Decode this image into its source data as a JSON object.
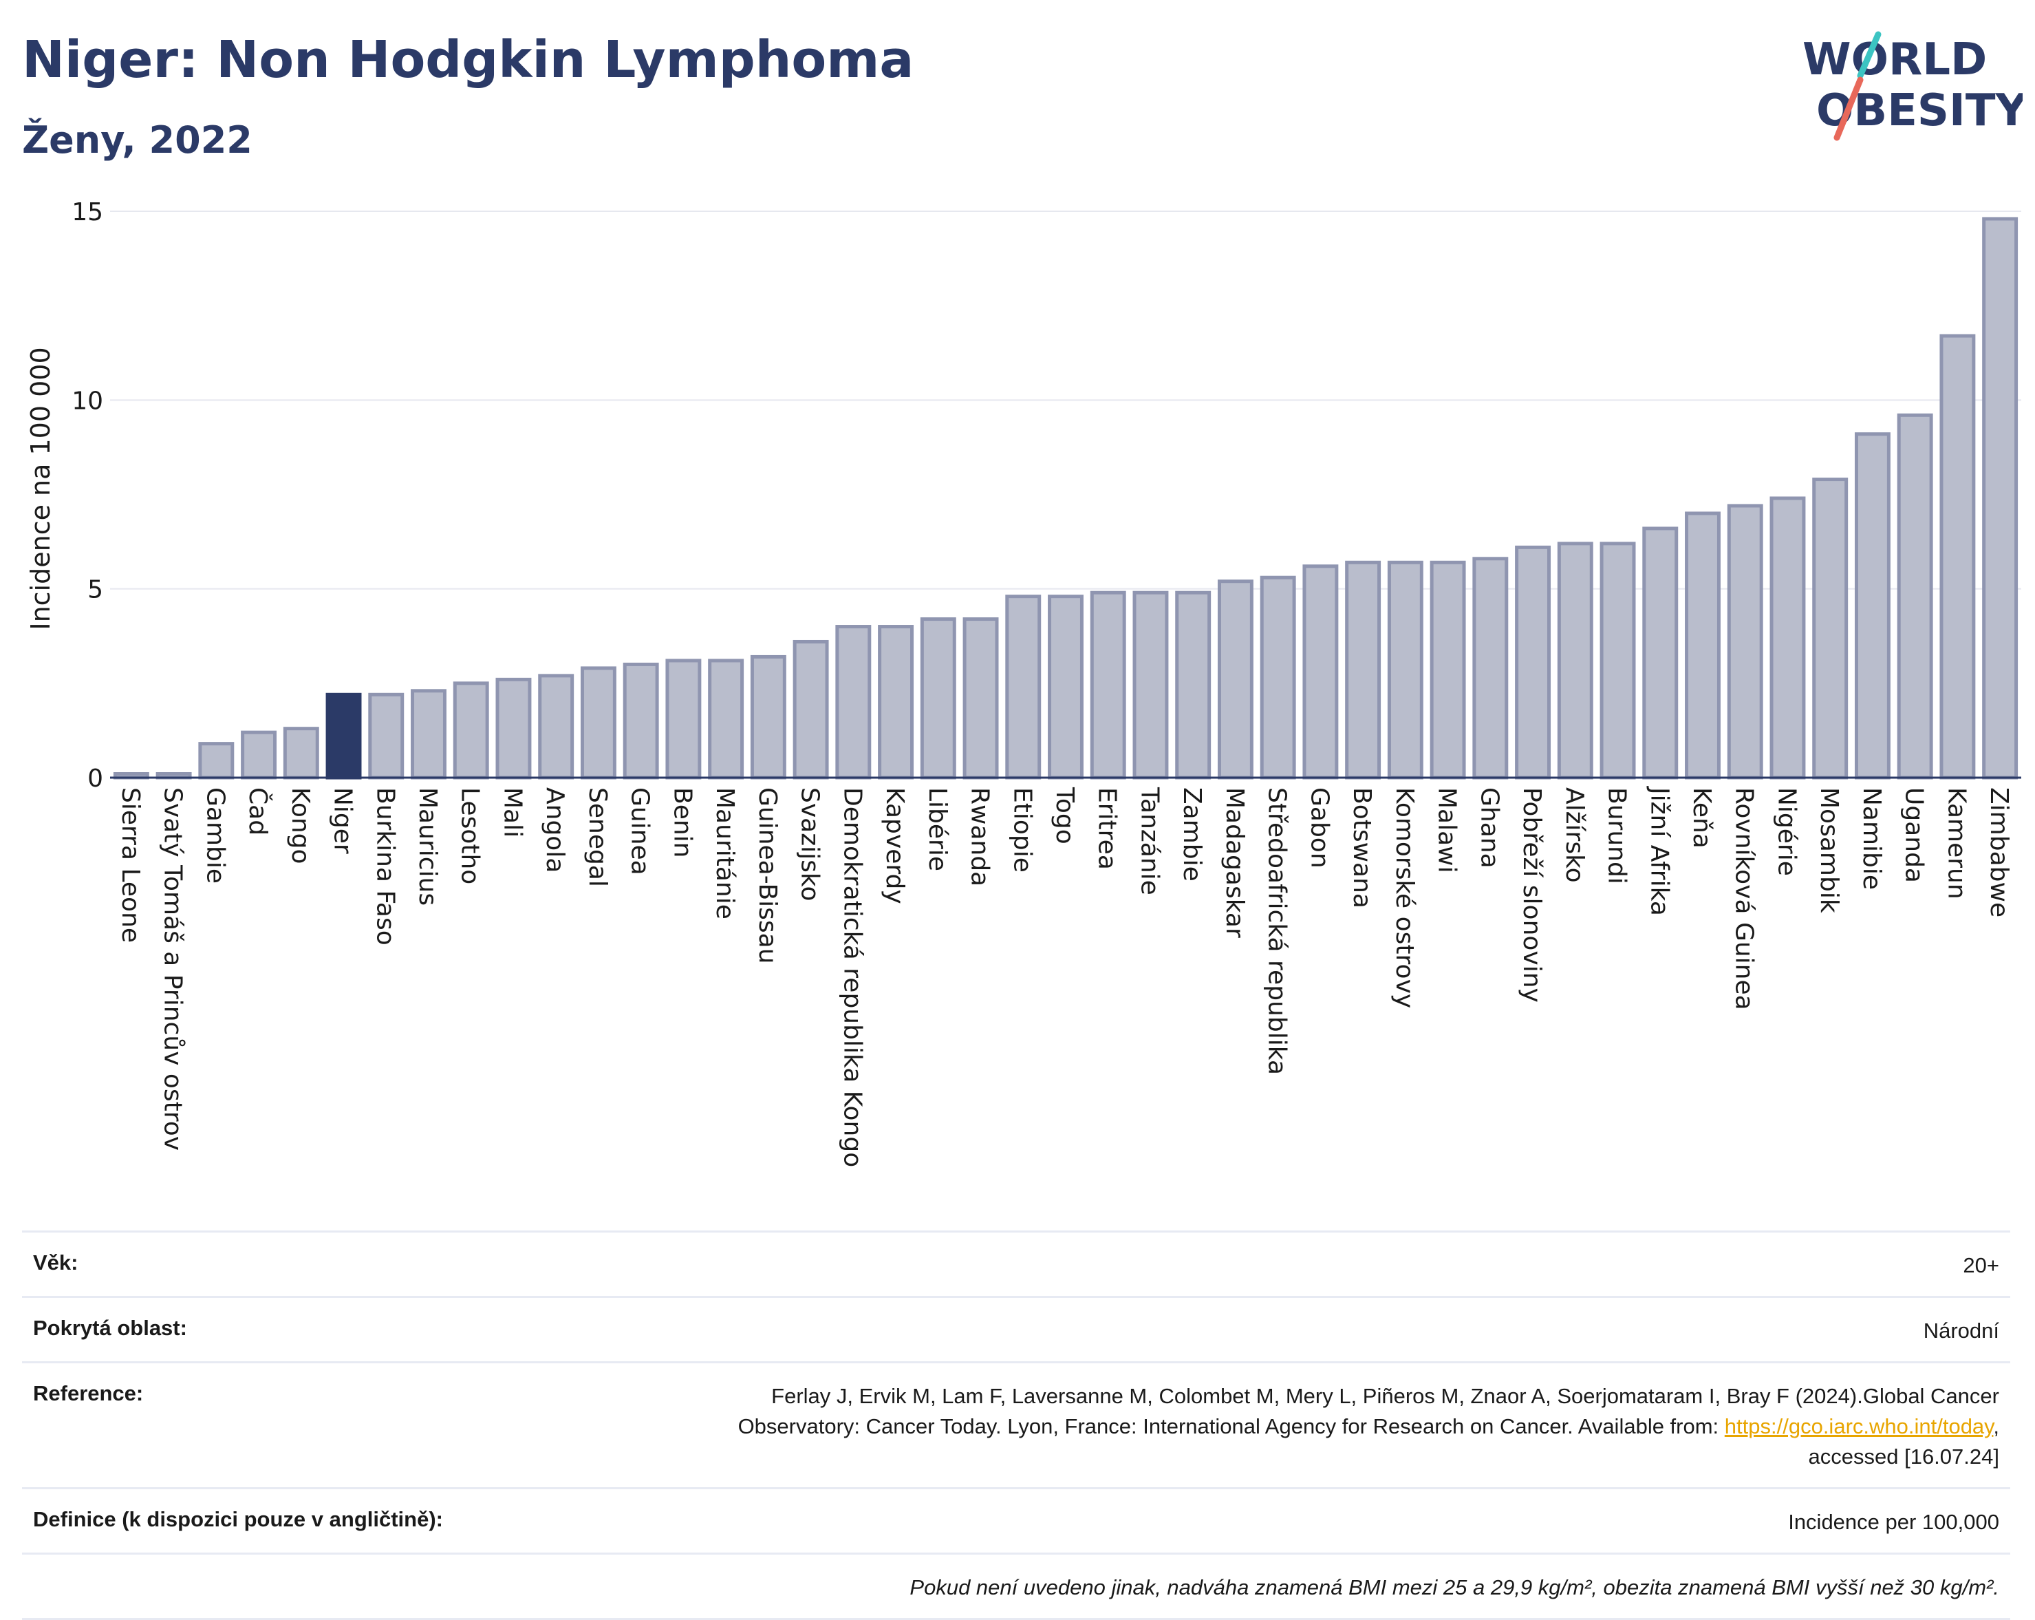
{
  "header": {
    "title": "Niger: Non Hodgkin Lymphoma",
    "subtitle": "Ženy, 2022",
    "logo_line1": "WORLD",
    "logo_line2": "OBESITY"
  },
  "colors": {
    "bar": "#b9bdcc",
    "bar_stroke": "#8f95b0",
    "highlight": "#2b3a67",
    "grid": "#e6e8ef",
    "text": "#2b3a67",
    "logo_teal": "#3cc4c2",
    "logo_red": "#e8685a"
  },
  "chart_data": {
    "type": "bar",
    "ylabel": "Incidence na 100 000",
    "ylim": [
      0,
      15
    ],
    "yticks": [
      0,
      5,
      10,
      15
    ],
    "highlight": "Niger",
    "categories": [
      "Sierra Leone",
      "Svatý Tomáš a Princův ostrov",
      "Gambie",
      "Čad",
      "Kongo",
      "Niger",
      "Burkina Faso",
      "Mauricius",
      "Lesotho",
      "Mali",
      "Angola",
      "Senegal",
      "Guinea",
      "Benin",
      "Mauritánie",
      "Guinea-Bissau",
      "Svazijsko",
      "Demokratická republika Kongo",
      "Kapverdy",
      "Libérie",
      "Rwanda",
      "Etiopie",
      "Togo",
      "Eritrea",
      "Tanzánie",
      "Zambie",
      "Madagaskar",
      "Středoafrická republika",
      "Gabon",
      "Botswana",
      "Komorské ostrovy",
      "Malawi",
      "Ghana",
      "Pobřeží slonoviny",
      "Alžírsko",
      "Burundi",
      "Jižní Afrika",
      "Keňa",
      "Rovníková Guinea",
      "Nigérie",
      "Mosambik",
      "Namibie",
      "Uganda",
      "Kamerun",
      "Zimbabwe"
    ],
    "values": [
      0.1,
      0.1,
      0.9,
      1.2,
      1.3,
      2.2,
      2.2,
      2.3,
      2.5,
      2.6,
      2.7,
      2.9,
      3.0,
      3.1,
      3.1,
      3.2,
      3.6,
      4.0,
      4.0,
      4.2,
      4.2,
      4.8,
      4.8,
      4.9,
      4.9,
      4.9,
      5.2,
      5.3,
      5.6,
      5.7,
      5.7,
      5.7,
      5.8,
      6.1,
      6.2,
      6.2,
      6.6,
      7.0,
      7.2,
      7.4,
      7.9,
      9.1,
      9.6,
      11.7,
      14.8
    ]
  },
  "meta": {
    "age_label": "Věk:",
    "age_value": "20+",
    "area_label": "Pokrytá oblast:",
    "area_value": "Národní",
    "ref_label": "Reference:",
    "ref_text_1": "Ferlay J, Ervik M, Lam F, Laversanne M, Colombet M, Mery L, Piñeros M, Znaor A, Soerjomataram I, Bray F (2024).Global Cancer",
    "ref_text_2": "Observatory: Cancer Today. Lyon, France: International Agency for Research on Cancer. Available from: ",
    "ref_link": "https://gco.iarc.who.int/today",
    "ref_text_3": ",",
    "ref_text_4": "accessed [16.07.24]",
    "def_label": "Definice (k dispozici pouze v angličtině):",
    "def_value": "Incidence per 100,000",
    "note": "Pokud není uvedeno jinak, nadváha znamená BMI mezi 25 a 29,9 kg/m², obezita znamená BMI vyšší než 30 kg/m²."
  }
}
